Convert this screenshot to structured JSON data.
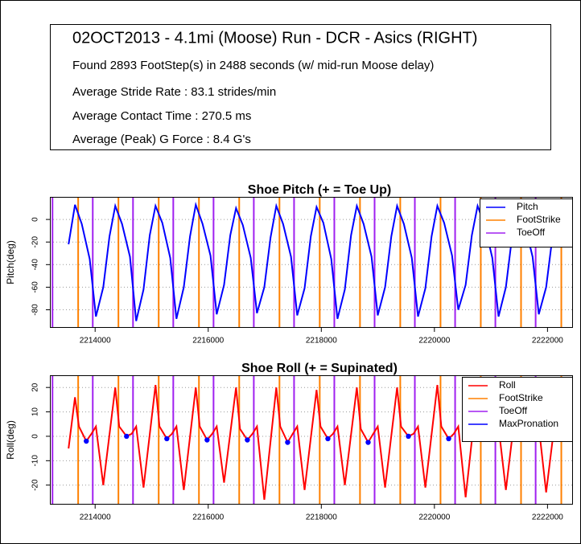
{
  "header": {
    "title": "02OCT2013 - 4.1mi (Moose) Run - DCR - Asics (RIGHT)",
    "lines": [
      "Found 2893 FootStep(s) in 2488 seconds (w/ mid-run Moose delay)",
      "Average Stride Rate : 83.1 strides/min",
      "Average Contact Time : 270.5 ms",
      "Average (Peak) G Force : 8.4 G's"
    ]
  },
  "chart_data": [
    {
      "type": "line",
      "title": "Shoe Pitch (+ = Toe Up)",
      "y_label": "Pitch(deg)",
      "xlim": [
        2213200,
        2222450
      ],
      "xticks": [
        2214000,
        2216000,
        2218000,
        2220000,
        2222000
      ],
      "ylim": [
        -96,
        20
      ],
      "yticks": [
        0,
        -20,
        -40,
        -60,
        -80
      ],
      "grid": true,
      "legend": "top-right",
      "x": [
        2213530,
        2213644,
        2213764,
        2213904,
        2214014,
        2214144,
        2214254,
        2214356,
        2214476,
        2214616,
        2214726,
        2214856,
        2214966,
        2215068,
        2215188,
        2215328,
        2215438,
        2215568,
        2215678,
        2215780,
        2215900,
        2216040,
        2216150,
        2216280,
        2216390,
        2216492,
        2216612,
        2216752,
        2216862,
        2216992,
        2217102,
        2217204,
        2217324,
        2217464,
        2217574,
        2217704,
        2217814,
        2217916,
        2218036,
        2218176,
        2218286,
        2218416,
        2218526,
        2218628,
        2218748,
        2218888,
        2218998,
        2219128,
        2219238,
        2219340,
        2219460,
        2219600,
        2219710,
        2219840,
        2219950,
        2220052,
        2220172,
        2220312,
        2220422,
        2220552,
        2220662,
        2220764,
        2220884,
        2221024,
        2221134,
        2221264,
        2221374,
        2221476,
        2221596,
        2221736,
        2221846,
        2221976,
        2222086,
        2222188
      ],
      "series": [
        {
          "name": "Pitch",
          "color": "#0000ff",
          "values": [
            -22,
            13,
            -4,
            -35,
            -86,
            -60,
            -15,
            12,
            -4,
            -33,
            -90,
            -62,
            -14,
            12,
            -3,
            -34,
            -88,
            -60,
            -15,
            13,
            -4,
            -32,
            -84,
            -58,
            -14,
            10,
            -5,
            -34,
            -83,
            -60,
            -16,
            12,
            -4,
            -33,
            -85,
            -61,
            -15,
            11,
            -3,
            -35,
            -88,
            -62,
            -14,
            12,
            -4,
            -33,
            -85,
            -60,
            -15,
            12,
            -4,
            -34,
            -86,
            -61,
            -15,
            12,
            -3,
            -32,
            -80,
            -58,
            -14,
            12,
            -4,
            -34,
            -86,
            -60,
            -15,
            11,
            -4,
            -33,
            -84,
            -60,
            -16,
            8
          ]
        }
      ],
      "events": [
        {
          "name": "FootStrike",
          "color": "#ff8000",
          "x": [
            2213700,
            2214412,
            2215124,
            2215836,
            2216548,
            2217260,
            2217972,
            2218684,
            2219396,
            2220108,
            2220820,
            2221532,
            2222244
          ]
        },
        {
          "name": "ToeOff",
          "color": "#a020f0",
          "x": [
            2213246,
            2213958,
            2214670,
            2215382,
            2216094,
            2216806,
            2217518,
            2218230,
            2218942,
            2219654,
            2220366,
            2221078,
            2221790
          ]
        }
      ]
    },
    {
      "type": "line",
      "title": "Shoe Roll (+ = Supinated)",
      "y_label": "Roll(deg)",
      "xlim": [
        2213200,
        2222450
      ],
      "xticks": [
        2214000,
        2216000,
        2218000,
        2220000,
        2222000
      ],
      "ylim": [
        -28,
        25
      ],
      "yticks": [
        20,
        10,
        0,
        -10,
        -20
      ],
      "grid": true,
      "legend": "top-right",
      "x": [
        2213530,
        2213644,
        2213714,
        2213844,
        2213934,
        2214014,
        2214144,
        2214356,
        2214426,
        2214556,
        2214646,
        2214726,
        2214856,
        2215068,
        2215138,
        2215268,
        2215358,
        2215438,
        2215568,
        2215780,
        2215850,
        2215980,
        2216070,
        2216150,
        2216280,
        2216492,
        2216562,
        2216692,
        2216782,
        2216862,
        2216992,
        2217204,
        2217274,
        2217404,
        2217494,
        2217574,
        2217704,
        2217916,
        2217986,
        2218116,
        2218206,
        2218286,
        2218416,
        2218628,
        2218698,
        2218828,
        2218918,
        2218998,
        2219128,
        2219340,
        2219410,
        2219540,
        2219630,
        2219710,
        2219840,
        2220052,
        2220122,
        2220252,
        2220342,
        2220422,
        2220552,
        2220764,
        2220834,
        2220964,
        2221054,
        2221134,
        2221264,
        2221476,
        2221546,
        2221676,
        2221766,
        2221846,
        2221976,
        2222188
      ],
      "series": [
        {
          "name": "Roll",
          "color": "#ff0000",
          "values": [
            -5,
            16,
            4,
            -2,
            1,
            4,
            -20,
            20,
            4,
            0,
            1,
            4,
            -21,
            21,
            4,
            -1,
            1,
            4,
            -22,
            20,
            4,
            -1.5,
            1,
            4,
            -19,
            20,
            3,
            -1.5,
            1,
            4,
            -26,
            20,
            4,
            -2.5,
            1,
            4,
            -22,
            19,
            4,
            -1,
            1,
            4,
            -20,
            20,
            3,
            -2.5,
            1,
            4,
            -21,
            20,
            4,
            0,
            1,
            4,
            -21,
            21,
            4,
            -1,
            1,
            4,
            -25,
            20,
            4,
            -1,
            1,
            4,
            -22,
            19,
            4,
            -1,
            1,
            4,
            -23,
            17
          ]
        }
      ],
      "events": [
        {
          "name": "FootStrike",
          "color": "#ff8000",
          "x": [
            2213700,
            2214412,
            2215124,
            2215836,
            2216548,
            2217260,
            2217972,
            2218684,
            2219396,
            2220108,
            2220820,
            2221532,
            2222244
          ]
        },
        {
          "name": "ToeOff",
          "color": "#a020f0",
          "x": [
            2213246,
            2213958,
            2214670,
            2215382,
            2216094,
            2216806,
            2217518,
            2218230,
            2218942,
            2219654,
            2220366,
            2221078,
            2221790
          ]
        }
      ],
      "points": {
        "name": "MaxPronation",
        "color": "#0000ff",
        "x": [
          2213844,
          2214556,
          2215268,
          2215980,
          2216692,
          2217404,
          2218116,
          2218828,
          2219540,
          2220252
        ],
        "values": [
          -2,
          0,
          -1,
          -1.5,
          -1.5,
          -2.5,
          -1,
          -2.5,
          0,
          -1
        ]
      }
    }
  ]
}
